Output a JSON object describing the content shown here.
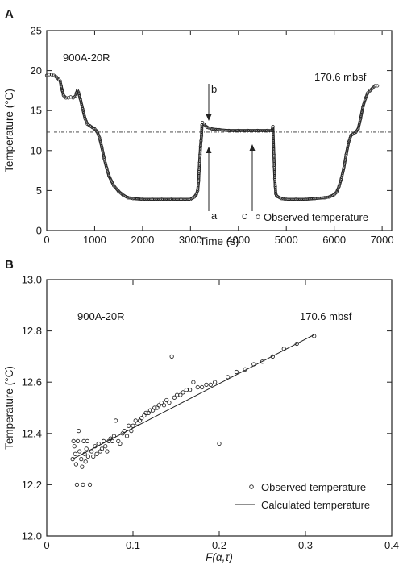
{
  "chart_data": [
    {
      "id": "A",
      "type": "scatter",
      "panel_label": "A",
      "xlabel": "Time (s)",
      "ylabel": "Temperature (°C)",
      "xlim": [
        0,
        7200
      ],
      "ylim": [
        0,
        25
      ],
      "xticks": [
        0,
        1000,
        2000,
        3000,
        4000,
        5000,
        6000,
        7000
      ],
      "yticks": [
        0,
        5,
        10,
        15,
        20,
        25
      ],
      "annotations": {
        "site": "900A-20R",
        "depth": "170.6 mbsf",
        "a": "a",
        "b": "b",
        "c": "c"
      },
      "reference_line_y": 12.3,
      "legend": {
        "position": "bottom-right",
        "entries": [
          "Observed temperature"
        ]
      },
      "series": [
        {
          "name": "Observed temperature",
          "points": [
            [
              0,
              19.4
            ],
            [
              50,
              19.5
            ],
            [
              100,
              19.5
            ],
            [
              150,
              19.4
            ],
            [
              200,
              19.2
            ],
            [
              250,
              18.9
            ],
            [
              280,
              18.7
            ],
            [
              300,
              18.1
            ],
            [
              320,
              17.6
            ],
            [
              350,
              16.9
            ],
            [
              400,
              16.6
            ],
            [
              450,
              16.6
            ],
            [
              500,
              16.7
            ],
            [
              550,
              16.6
            ],
            [
              600,
              16.8
            ],
            [
              620,
              17.2
            ],
            [
              640,
              17.5
            ],
            [
              660,
              17.3
            ],
            [
              700,
              16.5
            ],
            [
              750,
              15.2
            ],
            [
              800,
              14.0
            ],
            [
              850,
              13.3
            ],
            [
              900,
              13.1
            ],
            [
              950,
              12.9
            ],
            [
              1000,
              12.7
            ],
            [
              1050,
              12.4
            ],
            [
              1100,
              11.6
            ],
            [
              1150,
              10.4
            ],
            [
              1200,
              9.0
            ],
            [
              1250,
              7.8
            ],
            [
              1300,
              6.8
            ],
            [
              1400,
              5.6
            ],
            [
              1500,
              4.9
            ],
            [
              1600,
              4.4
            ],
            [
              1700,
              4.1
            ],
            [
              1800,
              4.0
            ],
            [
              2000,
              3.9
            ],
            [
              2200,
              3.9
            ],
            [
              2400,
              3.9
            ],
            [
              2600,
              3.9
            ],
            [
              2800,
              3.9
            ],
            [
              3000,
              3.9
            ],
            [
              3050,
              4.1
            ],
            [
              3080,
              4.2
            ],
            [
              3120,
              4.5
            ],
            [
              3150,
              5.0
            ],
            [
              3170,
              6.2
            ],
            [
              3180,
              7.5
            ],
            [
              3190,
              8.5
            ],
            [
              3200,
              9.5
            ],
            [
              3210,
              10.5
            ],
            [
              3220,
              11.2
            ],
            [
              3230,
              11.8
            ],
            [
              3240,
              13.2
            ],
            [
              3250,
              13.5
            ],
            [
              3280,
              13.3
            ],
            [
              3350,
              12.9
            ],
            [
              3450,
              12.7
            ],
            [
              3600,
              12.6
            ],
            [
              3800,
              12.5
            ],
            [
              4000,
              12.5
            ],
            [
              4200,
              12.5
            ],
            [
              4400,
              12.5
            ],
            [
              4600,
              12.5
            ],
            [
              4700,
              12.5
            ],
            [
              4720,
              13.0
            ],
            [
              4740,
              9.5
            ],
            [
              4750,
              8.0
            ],
            [
              4760,
              6.5
            ],
            [
              4770,
              5.5
            ],
            [
              4780,
              4.6
            ],
            [
              4800,
              4.3
            ],
            [
              4900,
              4.0
            ],
            [
              5000,
              3.9
            ],
            [
              5200,
              3.9
            ],
            [
              5400,
              3.9
            ],
            [
              5600,
              4.0
            ],
            [
              5800,
              4.1
            ],
            [
              5900,
              4.2
            ],
            [
              6000,
              4.5
            ],
            [
              6050,
              4.8
            ],
            [
              6100,
              5.5
            ],
            [
              6150,
              6.5
            ],
            [
              6200,
              7.8
            ],
            [
              6250,
              9.5
            ],
            [
              6300,
              11.0
            ],
            [
              6350,
              11.9
            ],
            [
              6400,
              12.1
            ],
            [
              6450,
              12.3
            ],
            [
              6500,
              12.7
            ],
            [
              6550,
              14.0
            ],
            [
              6600,
              15.5
            ],
            [
              6650,
              16.5
            ],
            [
              6700,
              17.2
            ],
            [
              6750,
              17.5
            ],
            [
              6800,
              17.8
            ],
            [
              6850,
              18.1
            ],
            [
              6900,
              18.1
            ]
          ]
        }
      ]
    },
    {
      "id": "B",
      "type": "scatter",
      "panel_label": "B",
      "xlabel": "F(α,τ)",
      "ylabel": "Temperature (°C)",
      "xlim": [
        0,
        0.4
      ],
      "ylim": [
        12.0,
        13.0
      ],
      "xticks": [
        "0",
        "0.1",
        "0.2",
        "0.3",
        "0.4"
      ],
      "yticks": [
        "12.0",
        "12.2",
        "12.4",
        "12.6",
        "12.8",
        "13.0"
      ],
      "annotations": {
        "site": "900A-20R",
        "depth": "170.6 mbsf"
      },
      "legend": {
        "position": "bottom-right",
        "entries": [
          "Observed temperature",
          "Calculated temperature"
        ]
      },
      "series": [
        {
          "name": "Observed temperature",
          "points": [
            [
              0.03,
              12.3
            ],
            [
              0.031,
              12.37
            ],
            [
              0.032,
              12.35
            ],
            [
              0.033,
              12.32
            ],
            [
              0.034,
              12.28
            ],
            [
              0.035,
              12.2
            ],
            [
              0.036,
              12.37
            ],
            [
              0.037,
              12.41
            ],
            [
              0.038,
              12.33
            ],
            [
              0.04,
              12.3
            ],
            [
              0.041,
              12.27
            ],
            [
              0.042,
              12.2
            ],
            [
              0.043,
              12.37
            ],
            [
              0.044,
              12.32
            ],
            [
              0.045,
              12.29
            ],
            [
              0.046,
              12.34
            ],
            [
              0.047,
              12.37
            ],
            [
              0.048,
              12.31
            ],
            [
              0.05,
              12.2
            ],
            [
              0.052,
              12.33
            ],
            [
              0.054,
              12.31
            ],
            [
              0.056,
              12.35
            ],
            [
              0.058,
              12.32
            ],
            [
              0.06,
              12.36
            ],
            [
              0.062,
              12.33
            ],
            [
              0.064,
              12.34
            ],
            [
              0.066,
              12.37
            ],
            [
              0.068,
              12.35
            ],
            [
              0.07,
              12.33
            ],
            [
              0.072,
              12.37
            ],
            [
              0.074,
              12.38
            ],
            [
              0.076,
              12.37
            ],
            [
              0.078,
              12.39
            ],
            [
              0.08,
              12.45
            ],
            [
              0.083,
              12.37
            ],
            [
              0.085,
              12.36
            ],
            [
              0.088,
              12.4
            ],
            [
              0.09,
              12.41
            ],
            [
              0.093,
              12.39
            ],
            [
              0.095,
              12.43
            ],
            [
              0.098,
              12.41
            ],
            [
              0.1,
              12.43
            ],
            [
              0.103,
              12.45
            ],
            [
              0.105,
              12.44
            ],
            [
              0.108,
              12.45
            ],
            [
              0.11,
              12.46
            ],
            [
              0.113,
              12.47
            ],
            [
              0.115,
              12.48
            ],
            [
              0.118,
              12.48
            ],
            [
              0.12,
              12.49
            ],
            [
              0.123,
              12.49
            ],
            [
              0.125,
              12.5
            ],
            [
              0.128,
              12.5
            ],
            [
              0.13,
              12.51
            ],
            [
              0.133,
              12.52
            ],
            [
              0.136,
              12.51
            ],
            [
              0.139,
              12.53
            ],
            [
              0.142,
              12.52
            ],
            [
              0.145,
              12.7
            ],
            [
              0.148,
              12.54
            ],
            [
              0.151,
              12.55
            ],
            [
              0.155,
              12.55
            ],
            [
              0.158,
              12.56
            ],
            [
              0.162,
              12.57
            ],
            [
              0.166,
              12.57
            ],
            [
              0.17,
              12.6
            ],
            [
              0.175,
              12.58
            ],
            [
              0.18,
              12.58
            ],
            [
              0.185,
              12.59
            ],
            [
              0.19,
              12.59
            ],
            [
              0.195,
              12.6
            ],
            [
              0.2,
              12.36
            ],
            [
              0.21,
              12.62
            ],
            [
              0.22,
              12.64
            ],
            [
              0.23,
              12.65
            ],
            [
              0.24,
              12.67
            ],
            [
              0.25,
              12.68
            ],
            [
              0.262,
              12.7
            ],
            [
              0.275,
              12.73
            ],
            [
              0.29,
              12.75
            ],
            [
              0.31,
              12.78
            ]
          ]
        },
        {
          "name": "Calculated temperature",
          "line": [
            [
              0.03,
              12.3
            ],
            [
              0.31,
              12.785
            ]
          ]
        }
      ]
    }
  ]
}
